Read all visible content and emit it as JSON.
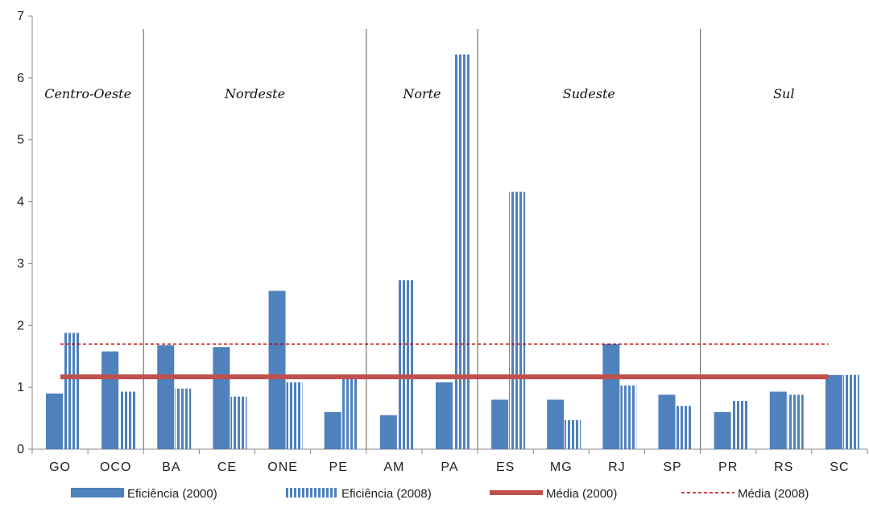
{
  "chart_data": {
    "type": "bar",
    "categories": [
      "GO",
      "OCO",
      "BA",
      "CE",
      "ONE",
      "PE",
      "AM",
      "PA",
      "ES",
      "MG",
      "RJ",
      "SP",
      "PR",
      "RS",
      "SC"
    ],
    "series": [
      {
        "name": "Eficiência (2000)",
        "type": "bar",
        "style": "solid",
        "color": "#4F81BD",
        "values": [
          0.9,
          1.58,
          1.68,
          1.65,
          2.56,
          0.6,
          0.55,
          1.08,
          0.8,
          0.8,
          1.7,
          0.88,
          0.6,
          0.93,
          1.2
        ]
      },
      {
        "name": "Eficiência (2008)",
        "type": "bar",
        "style": "striped",
        "color": "#4F81BD",
        "values": [
          1.88,
          0.93,
          0.98,
          0.85,
          1.08,
          1.15,
          2.73,
          6.38,
          4.16,
          0.47,
          1.03,
          0.7,
          0.78,
          0.88,
          1.2
        ]
      },
      {
        "name": "Média (2000)",
        "type": "line",
        "style": "solid",
        "color": "#C0504D",
        "value": 1.17
      },
      {
        "name": "Média (2008)",
        "type": "line",
        "style": "dashed",
        "color": "#C00000",
        "value": 1.7
      }
    ],
    "regions": [
      {
        "label": "Centro-Oeste",
        "categories": [
          "GO",
          "OCO"
        ]
      },
      {
        "label": "Nordeste",
        "categories": [
          "BA",
          "CE",
          "ONE",
          "PE"
        ]
      },
      {
        "label": "Norte",
        "categories": [
          "AM",
          "PA"
        ]
      },
      {
        "label": "Sudeste",
        "categories": [
          "ES",
          "MG",
          "RJ",
          "SP"
        ]
      },
      {
        "label": "Sul",
        "categories": [
          "PR",
          "RS",
          "SC"
        ]
      }
    ],
    "yticks": [
      "0",
      "1",
      "2",
      "3",
      "4",
      "5",
      "6",
      "7"
    ],
    "ylim": [
      0,
      7
    ],
    "grid": false,
    "legend_position": "bottom"
  }
}
